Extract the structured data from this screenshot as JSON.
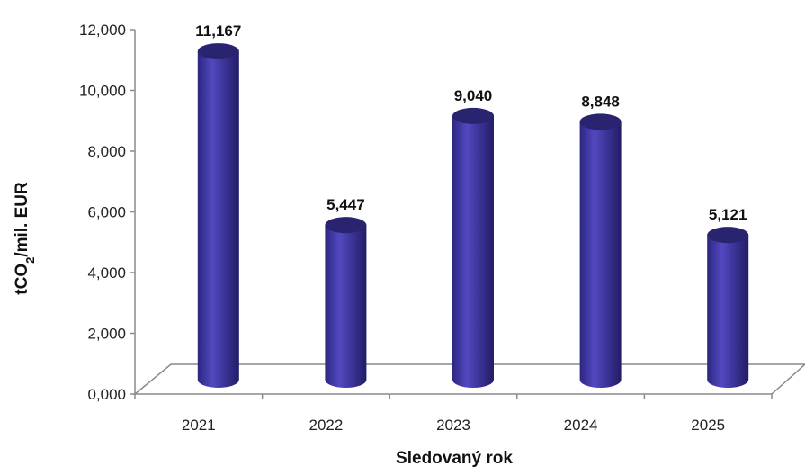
{
  "chart_data": {
    "type": "bar",
    "style": "3d-cylinder",
    "categories": [
      "2021",
      "2022",
      "2023",
      "2024",
      "2025"
    ],
    "values": [
      11.167,
      5.447,
      9.04,
      8.848,
      5.121
    ],
    "data_labels": [
      "11,167",
      "5,447",
      "9,040",
      "8,848",
      "5,121"
    ],
    "title": "",
    "xlabel": "Sledovaný rok",
    "ylabel_main": "tCO",
    "ylabel_sub": "2",
    "ylabel_rest": "/mil. EUR",
    "ylim": [
      0,
      12
    ],
    "yticks": [
      0,
      2,
      4,
      6,
      8,
      10,
      12
    ],
    "ytick_labels": [
      "0,000",
      "2,000",
      "4,000",
      "6,000",
      "8,000",
      "10,000",
      "12,000"
    ],
    "grid": false,
    "legend": "none",
    "colors": {
      "bar_body": "#3c3599",
      "bar_top": "#2a2470",
      "floor_line": "#8a8a8a"
    }
  }
}
